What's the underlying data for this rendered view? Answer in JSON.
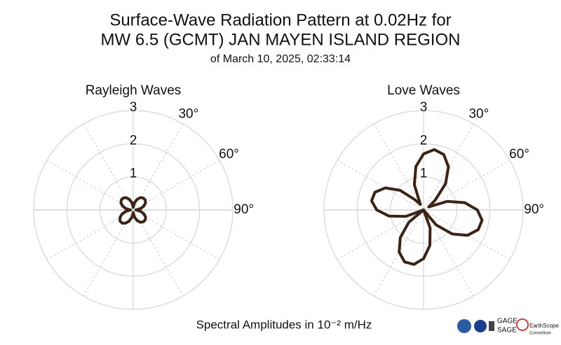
{
  "header": {
    "title_lines": [
      "Surface-Wave Radiation Pattern at 0.02Hz for",
      "MW 6.5 (GCMT) JAN MAYEN ISLAND REGION"
    ],
    "subtitle": "of March 10, 2025, 02:33:14"
  },
  "chart_data": [
    {
      "type": "polar",
      "title": "Rayleigh Waves",
      "color": "#3b2316",
      "theta_zero": "N",
      "theta_direction": "clockwise",
      "theta": [
        0,
        10,
        20,
        30,
        40,
        50,
        60,
        70,
        80,
        90,
        100,
        110,
        120,
        130,
        140,
        150,
        160,
        170,
        180,
        190,
        200,
        210,
        220,
        230,
        240,
        250,
        260,
        270,
        280,
        290,
        300,
        310,
        320,
        330,
        340,
        350
      ],
      "r": [
        0.08,
        0.22,
        0.34,
        0.43,
        0.47,
        0.47,
        0.43,
        0.34,
        0.22,
        0.08,
        0.22,
        0.34,
        0.43,
        0.47,
        0.47,
        0.43,
        0.34,
        0.22,
        0.08,
        0.22,
        0.36,
        0.46,
        0.52,
        0.52,
        0.46,
        0.36,
        0.22,
        0.08,
        0.22,
        0.34,
        0.43,
        0.47,
        0.47,
        0.43,
        0.34,
        0.22
      ],
      "rlim": [
        0,
        3
      ],
      "rticks": [
        1,
        2,
        3
      ],
      "thetaticks": [
        {
          "value": 30,
          "label": "30°"
        },
        {
          "value": 60,
          "label": "60°"
        },
        {
          "value": 90,
          "label": "90°"
        }
      ]
    },
    {
      "type": "polar",
      "title": "Love Waves",
      "color": "#3b2316",
      "theta_zero": "N",
      "theta_direction": "clockwise",
      "theta": [
        0,
        10,
        20,
        30,
        40,
        50,
        60,
        70,
        80,
        90,
        100,
        110,
        120,
        130,
        140,
        150,
        160,
        170,
        180,
        190,
        200,
        210,
        220,
        230,
        240,
        250,
        260,
        270,
        280,
        290,
        300,
        310,
        320,
        330,
        340,
        350
      ],
      "r": [
        1.69,
        1.85,
        1.78,
        1.5,
        1.03,
        0.45,
        0.18,
        0.76,
        1.26,
        1.62,
        1.79,
        1.75,
        1.53,
        1.13,
        0.59,
        0,
        0.58,
        1.09,
        1.47,
        1.67,
        1.67,
        1.47,
        1.09,
        0.58,
        0,
        0.57,
        1.06,
        1.41,
        1.59,
        1.56,
        1.33,
        0.92,
        0.4,
        0.19,
        0.81,
        1.33
      ],
      "rlim": [
        0,
        3
      ],
      "rticks": [
        1,
        2,
        3
      ],
      "thetaticks": [
        {
          "value": 30,
          "label": "30°"
        },
        {
          "value": 60,
          "label": "60°"
        },
        {
          "value": 90,
          "label": "90°"
        }
      ]
    }
  ],
  "footer": {
    "note": "Spectral Amplitudes in 10⁻² m/Hz",
    "logos": [
      "GAGE",
      "SAGE",
      "EarthScope",
      "Consortium"
    ]
  }
}
